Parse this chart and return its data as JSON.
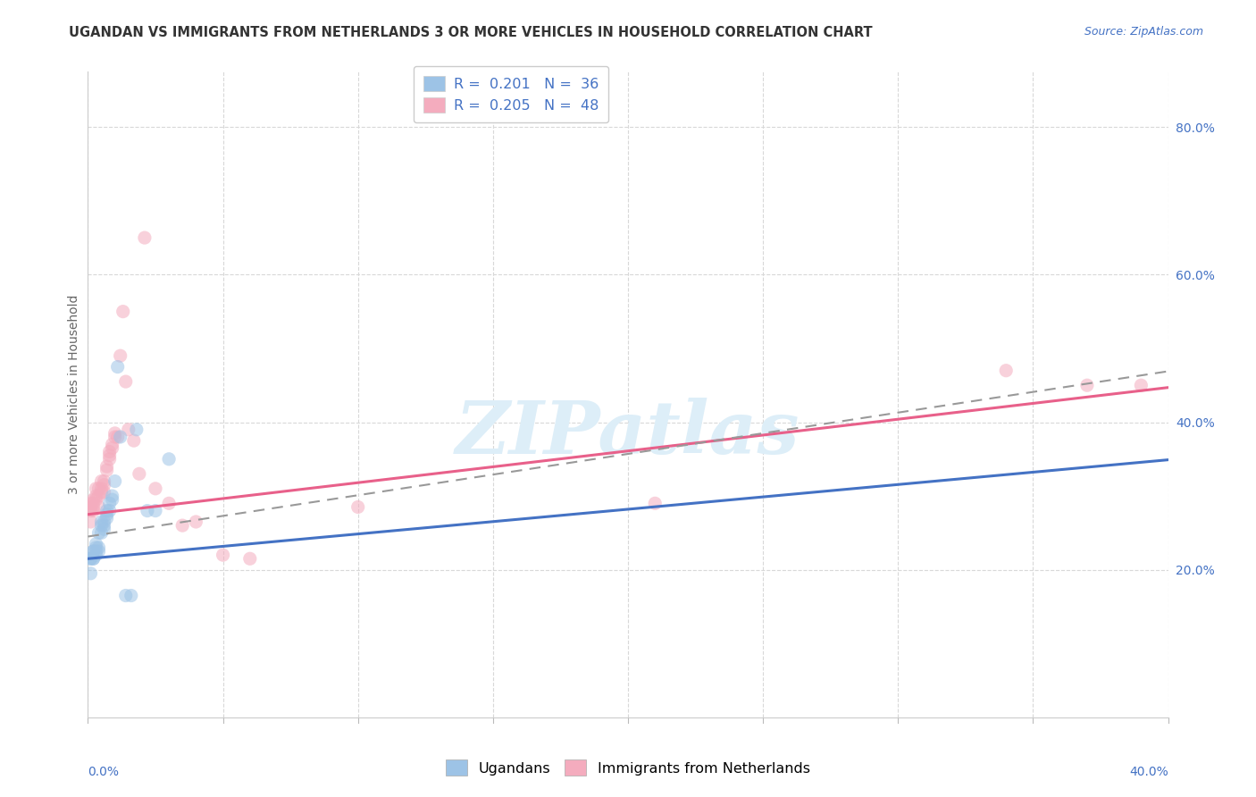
{
  "title": "UGANDAN VS IMMIGRANTS FROM NETHERLANDS 3 OR MORE VEHICLES IN HOUSEHOLD CORRELATION CHART",
  "source": "Source: ZipAtlas.com",
  "ylabel": "3 or more Vehicles in Household",
  "xlim": [
    0.0,
    0.4
  ],
  "ylim": [
    0.0,
    0.875
  ],
  "right_ytick_vals": [
    0.2,
    0.4,
    0.6,
    0.8
  ],
  "right_ytick_labels": [
    "20.0%",
    "40.0%",
    "60.0%",
    "80.0%"
  ],
  "x_tick_vals": [
    0.0,
    0.05,
    0.1,
    0.15,
    0.2,
    0.25,
    0.3,
    0.35,
    0.4
  ],
  "ugandan_x": [
    0.001,
    0.001,
    0.001,
    0.002,
    0.002,
    0.002,
    0.002,
    0.003,
    0.003,
    0.003,
    0.003,
    0.004,
    0.004,
    0.004,
    0.005,
    0.005,
    0.005,
    0.006,
    0.006,
    0.006,
    0.007,
    0.007,
    0.007,
    0.008,
    0.008,
    0.009,
    0.009,
    0.01,
    0.011,
    0.012,
    0.014,
    0.016,
    0.018,
    0.022,
    0.025,
    0.03
  ],
  "ugandan_y": [
    0.215,
    0.195,
    0.215,
    0.215,
    0.225,
    0.215,
    0.225,
    0.235,
    0.225,
    0.23,
    0.22,
    0.225,
    0.25,
    0.23,
    0.265,
    0.26,
    0.25,
    0.265,
    0.26,
    0.255,
    0.28,
    0.275,
    0.27,
    0.29,
    0.28,
    0.3,
    0.295,
    0.32,
    0.475,
    0.38,
    0.165,
    0.165,
    0.39,
    0.28,
    0.28,
    0.35
  ],
  "netherlands_x": [
    0.001,
    0.001,
    0.001,
    0.001,
    0.002,
    0.002,
    0.002,
    0.002,
    0.003,
    0.003,
    0.003,
    0.004,
    0.004,
    0.004,
    0.005,
    0.005,
    0.005,
    0.006,
    0.006,
    0.006,
    0.007,
    0.007,
    0.008,
    0.008,
    0.008,
    0.009,
    0.009,
    0.01,
    0.01,
    0.011,
    0.012,
    0.013,
    0.014,
    0.015,
    0.017,
    0.019,
    0.021,
    0.025,
    0.03,
    0.035,
    0.04,
    0.05,
    0.06,
    0.1,
    0.21,
    0.34,
    0.37,
    0.39
  ],
  "netherlands_y": [
    0.29,
    0.28,
    0.285,
    0.265,
    0.295,
    0.29,
    0.28,
    0.285,
    0.3,
    0.295,
    0.31,
    0.285,
    0.31,
    0.3,
    0.31,
    0.32,
    0.305,
    0.32,
    0.315,
    0.305,
    0.34,
    0.335,
    0.36,
    0.35,
    0.355,
    0.37,
    0.365,
    0.38,
    0.385,
    0.38,
    0.49,
    0.55,
    0.455,
    0.39,
    0.375,
    0.33,
    0.65,
    0.31,
    0.29,
    0.26,
    0.265,
    0.22,
    0.215,
    0.285,
    0.29,
    0.47,
    0.45,
    0.45
  ],
  "ugandan_color": "#9dc3e6",
  "netherlands_color": "#f4acbe",
  "ugandan_line_color": "#4472c4",
  "netherlands_line_color": "#e8608a",
  "ugandan_line_style": "solid",
  "netherlands_line_style": "solid",
  "background_color": "#ffffff",
  "grid_color": "#d8d8d8",
  "watermark_text": "ZIPatlas",
  "watermark_color": "#ddeef8",
  "scatter_size": 120,
  "scatter_alpha": 0.55,
  "line_width": 2.2,
  "title_fontsize": 10.5,
  "source_fontsize": 9,
  "ylabel_fontsize": 10,
  "tick_fontsize": 10,
  "legend_fontsize": 11.5,
  "watermark_fontsize": 60,
  "ug_line_intercept": 0.215,
  "ug_line_slope": 0.335,
  "nl_line_intercept": 0.275,
  "nl_line_slope": 0.43
}
